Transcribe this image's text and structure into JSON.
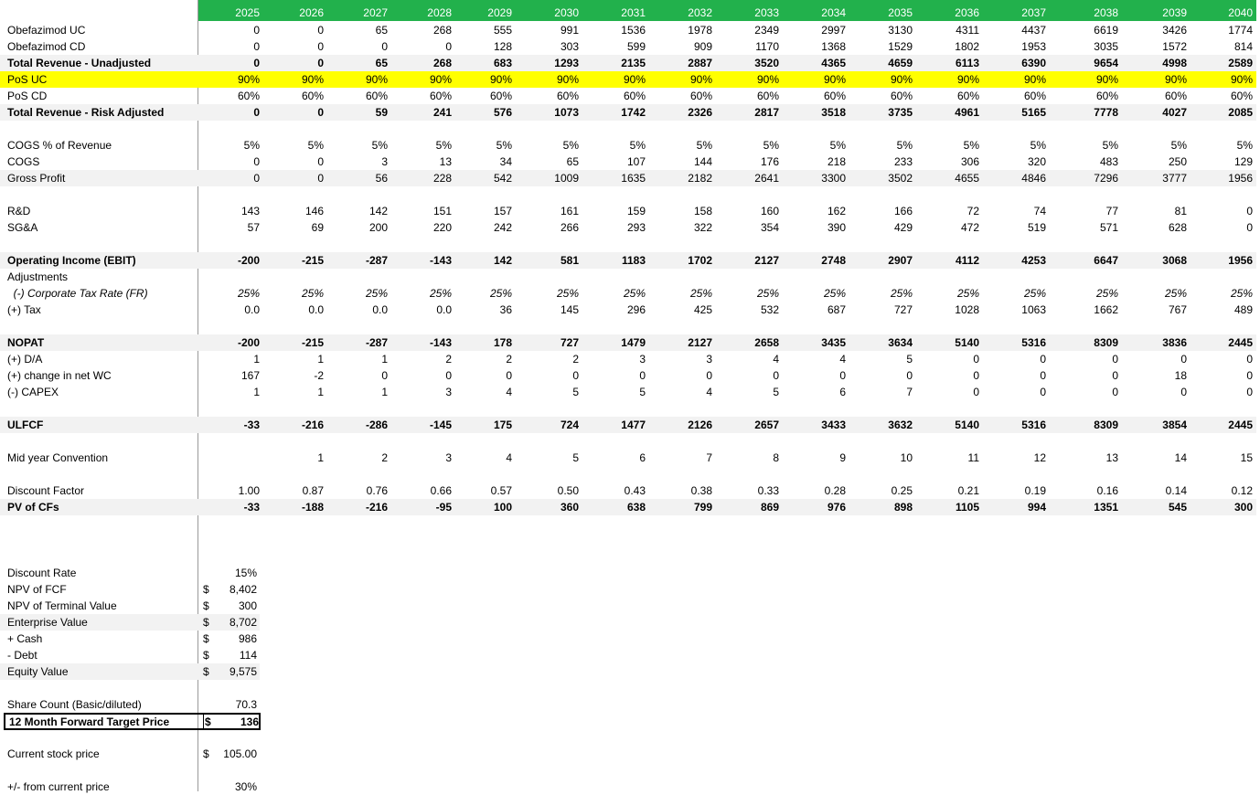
{
  "years": [
    "2025",
    "2026",
    "2027",
    "2028",
    "2029",
    "2030",
    "2031",
    "2032",
    "2033",
    "2034",
    "2035",
    "2036",
    "2037",
    "2038",
    "2039",
    "2040"
  ],
  "rows": [
    {
      "label": "Obefazimod UC",
      "values": [
        "0",
        "0",
        "65",
        "268",
        "555",
        "991",
        "1536",
        "1978",
        "2349",
        "2997",
        "3130",
        "4311",
        "4437",
        "6619",
        "3426",
        "1774"
      ]
    },
    {
      "label": "Obefazimod CD",
      "values": [
        "0",
        "0",
        "0",
        "0",
        "128",
        "303",
        "599",
        "909",
        "1170",
        "1368",
        "1529",
        "1802",
        "1953",
        "3035",
        "1572",
        "814"
      ]
    },
    {
      "label": "Total Revenue - Unadjusted",
      "bold": true,
      "shade": true,
      "values": [
        "0",
        "0",
        "65",
        "268",
        "683",
        "1293",
        "2135",
        "2887",
        "3520",
        "4365",
        "4659",
        "6113",
        "6390",
        "9654",
        "4998",
        "2589"
      ]
    },
    {
      "label": "PoS UC",
      "yellow": true,
      "values": [
        "90%",
        "90%",
        "90%",
        "90%",
        "90%",
        "90%",
        "90%",
        "90%",
        "90%",
        "90%",
        "90%",
        "90%",
        "90%",
        "90%",
        "90%",
        "90%"
      ]
    },
    {
      "label": "PoS CD",
      "values": [
        "60%",
        "60%",
        "60%",
        "60%",
        "60%",
        "60%",
        "60%",
        "60%",
        "60%",
        "60%",
        "60%",
        "60%",
        "60%",
        "60%",
        "60%",
        "60%"
      ]
    },
    {
      "label": "Total Revenue - Risk Adjusted",
      "bold": true,
      "shade": true,
      "values": [
        "0",
        "0",
        "59",
        "241",
        "576",
        "1073",
        "1742",
        "2326",
        "2817",
        "3518",
        "3735",
        "4961",
        "5165",
        "7778",
        "4027",
        "2085"
      ]
    },
    {
      "label": "",
      "values": []
    },
    {
      "label": "COGS % of Revenue",
      "values": [
        "5%",
        "5%",
        "5%",
        "5%",
        "5%",
        "5%",
        "5%",
        "5%",
        "5%",
        "5%",
        "5%",
        "5%",
        "5%",
        "5%",
        "5%",
        "5%"
      ]
    },
    {
      "label": "COGS",
      "values": [
        "0",
        "0",
        "3",
        "13",
        "34",
        "65",
        "107",
        "144",
        "176",
        "218",
        "233",
        "306",
        "320",
        "483",
        "250",
        "129"
      ]
    },
    {
      "label": "Gross Profit",
      "shade": true,
      "values": [
        "0",
        "0",
        "56",
        "228",
        "542",
        "1009",
        "1635",
        "2182",
        "2641",
        "3300",
        "3502",
        "4655",
        "4846",
        "7296",
        "3777",
        "1956"
      ]
    },
    {
      "label": "",
      "values": []
    },
    {
      "label": "R&D",
      "values": [
        "143",
        "146",
        "142",
        "151",
        "157",
        "161",
        "159",
        "158",
        "160",
        "162",
        "166",
        "72",
        "74",
        "77",
        "81",
        "0"
      ]
    },
    {
      "label": "SG&A",
      "values": [
        "57",
        "69",
        "200",
        "220",
        "242",
        "266",
        "293",
        "322",
        "354",
        "390",
        "429",
        "472",
        "519",
        "571",
        "628",
        "0"
      ]
    },
    {
      "label": "",
      "values": []
    },
    {
      "label": "Operating Income (EBIT)",
      "bold": true,
      "shade": true,
      "values": [
        "-200",
        "-215",
        "-287",
        "-143",
        "142",
        "581",
        "1183",
        "1702",
        "2127",
        "2748",
        "2907",
        "4112",
        "4253",
        "6647",
        "3068",
        "1956"
      ]
    },
    {
      "label": "Adjustments",
      "values": []
    },
    {
      "label": "  (-) Corporate Tax Rate (FR)",
      "italic": true,
      "values": [
        "25%",
        "25%",
        "25%",
        "25%",
        "25%",
        "25%",
        "25%",
        "25%",
        "25%",
        "25%",
        "25%",
        "25%",
        "25%",
        "25%",
        "25%",
        "25%"
      ]
    },
    {
      "label": "(+) Tax",
      "values": [
        "0.0",
        "0.0",
        "0.0",
        "0.0",
        "36",
        "145",
        "296",
        "425",
        "532",
        "687",
        "727",
        "1028",
        "1063",
        "1662",
        "767",
        "489"
      ]
    },
    {
      "label": "",
      "values": []
    },
    {
      "label": "NOPAT",
      "bold": true,
      "shade": true,
      "values": [
        "-200",
        "-215",
        "-287",
        "-143",
        "178",
        "727",
        "1479",
        "2127",
        "2658",
        "3435",
        "3634",
        "5140",
        "5316",
        "8309",
        "3836",
        "2445"
      ]
    },
    {
      "label": "(+) D/A",
      "values": [
        "1",
        "1",
        "1",
        "2",
        "2",
        "2",
        "3",
        "3",
        "4",
        "4",
        "5",
        "0",
        "0",
        "0",
        "0",
        "0"
      ]
    },
    {
      "label": "(+) change in net WC",
      "values": [
        "167",
        "-2",
        "0",
        "0",
        "0",
        "0",
        "0",
        "0",
        "0",
        "0",
        "0",
        "0",
        "0",
        "0",
        "18",
        "0"
      ]
    },
    {
      "label": "(-) CAPEX",
      "values": [
        "1",
        "1",
        "1",
        "3",
        "4",
        "5",
        "5",
        "4",
        "5",
        "6",
        "7",
        "0",
        "0",
        "0",
        "0",
        "0"
      ]
    },
    {
      "label": "",
      "values": []
    },
    {
      "label": "ULFCF",
      "bold": true,
      "shade": true,
      "values": [
        "-33",
        "-216",
        "-286",
        "-145",
        "175",
        "724",
        "1477",
        "2126",
        "2657",
        "3433",
        "3632",
        "5140",
        "5316",
        "8309",
        "3854",
        "2445"
      ]
    },
    {
      "label": "",
      "values": []
    },
    {
      "label": "Mid year Convention",
      "values": [
        "",
        "1",
        "2",
        "3",
        "4",
        "5",
        "6",
        "7",
        "8",
        "9",
        "10",
        "11",
        "12",
        "13",
        "14",
        "15"
      ]
    },
    {
      "label": "",
      "values": []
    },
    {
      "label": "Discount Factor",
      "values": [
        "1.00",
        "0.87",
        "0.76",
        "0.66",
        "0.57",
        "0.50",
        "0.43",
        "0.38",
        "0.33",
        "0.28",
        "0.25",
        "0.21",
        "0.19",
        "0.16",
        "0.14",
        "0.12"
      ]
    },
    {
      "label": "PV of CFs",
      "bold": true,
      "shade": true,
      "values": [
        "-33",
        "-188",
        "-216",
        "-95",
        "100",
        "360",
        "638",
        "799",
        "869",
        "976",
        "898",
        "1105",
        "994",
        "1351",
        "545",
        "300"
      ]
    }
  ],
  "summary": [
    {
      "label": "Discount Rate",
      "dollar": "",
      "value": "15%",
      "row": 33
    },
    {
      "label": "NPV of FCF",
      "dollar": "$",
      "value": "8,402",
      "row": 34
    },
    {
      "label": "NPV of Terminal Value",
      "dollar": "$",
      "value": "300",
      "row": 35
    },
    {
      "label": "Enterprise Value",
      "dollar": "$",
      "value": "8,702",
      "row": 36,
      "shade": true
    },
    {
      "label": "+ Cash",
      "dollar": "$",
      "value": "986",
      "row": 37
    },
    {
      "label": "- Debt",
      "dollar": "$",
      "value": "114",
      "row": 38
    },
    {
      "label": "Equity Value",
      "dollar": "$",
      "value": "9,575",
      "row": 39,
      "shade": true
    },
    {
      "label": "Share Count (Basic/diluted)",
      "dollar": "",
      "value": "70.3",
      "row": 41
    },
    {
      "label": "Current stock price",
      "dollar": "$",
      "value": "105.00",
      "row": 44
    },
    {
      "label": "+/- from current price",
      "dollar": "",
      "value": "30%",
      "row": 46
    }
  ],
  "target": {
    "label": "12 Month Forward Target Price",
    "dollar": "$",
    "value": "136"
  }
}
